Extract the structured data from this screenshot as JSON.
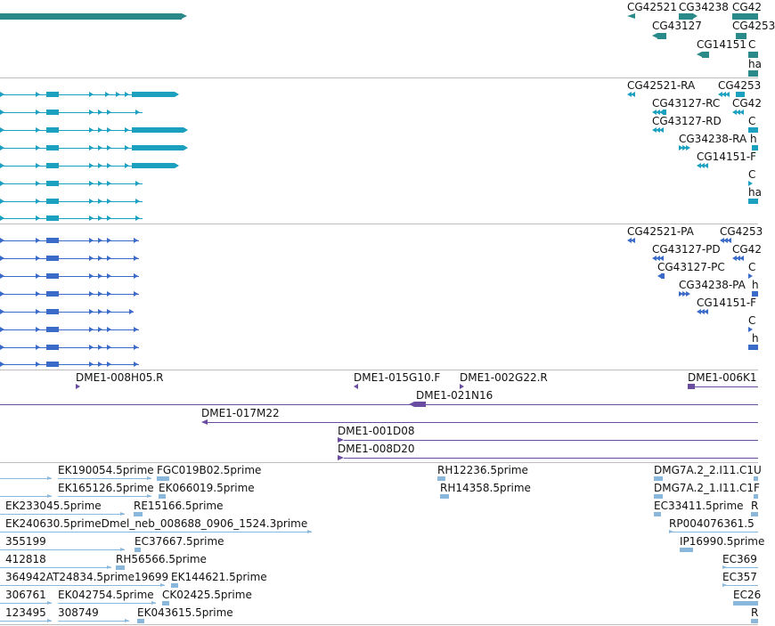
{
  "colors": {
    "gene": "#2a8a8a",
    "transcript": "#1ba0c0",
    "protein": "#3a6bc8",
    "clone": "#6a4ca0",
    "est": "#8ab8dc",
    "separator": "#bdbdbd"
  },
  "gene_track": {
    "labels": [
      "CG42521",
      "CG34238",
      "CG42",
      "CG43127",
      "CG4253",
      "CG14151",
      "C",
      "ha"
    ]
  },
  "transcript_track": {
    "labels": [
      "CG42521-RA",
      "CG4253",
      "CG43127-RC",
      "CG42",
      "CG43127-RD",
      "C",
      "CG34238-RA",
      "h",
      "CG14151-F",
      "C",
      "ha"
    ]
  },
  "protein_track": {
    "labels": [
      "CG42521-PA",
      "CG4253",
      "CG43127-PD",
      "CG42",
      "CG43127-PC",
      "C",
      "CG34238-PA",
      "h",
      "CG14151-F",
      "C",
      "h"
    ]
  },
  "clone_track": {
    "labels": [
      "DME1-008H05.R",
      "DME1-015G10.F",
      "DME1-002G22.R",
      "DME1-006K1",
      "DME1-021N16",
      "DME1-017M22",
      "DME1-001D08",
      "DME1-008D20"
    ]
  },
  "est_track": {
    "labels": [
      "EK190054.5prime",
      "FGC019B02.5prime",
      "RH12236.5prime",
      "DMG7A.2_2.I11.C1U",
      "EK165126.5prime",
      "EK066019.5prime",
      "RH14358.5prime",
      "DMG7A.2_1.I11.C1F",
      "EK233045.5prime",
      "RE15166.5prime",
      "EC33411.5prime",
      "R",
      "EK240630.5primeDmel_neb_008688_0906_1524.3prime",
      "RP004076361.5",
      "355199",
      "EC37667.5prime",
      "IP16990.5prime",
      "412818",
      "RH56566.5prime",
      "EC369",
      "364942AT24834.5prime19699",
      "EK144621.5prime",
      "EC357",
      "306761",
      "EK042754.5prime",
      "CK02425.5prime",
      "EC26",
      "123495",
      "308749",
      "EK043615.5prime",
      "R"
    ]
  }
}
